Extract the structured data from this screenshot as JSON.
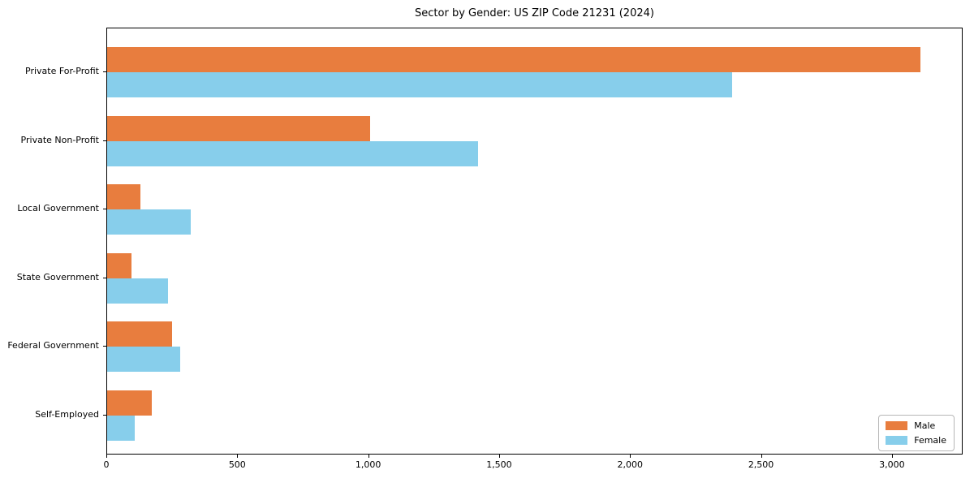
{
  "chart_data": {
    "type": "bar",
    "orientation": "horizontal",
    "title": "Sector by Gender: US ZIP Code 21231 (2024)",
    "categories": [
      "Private For-Profit",
      "Private Non-Profit",
      "Local Government",
      "State Government",
      "Federal Government",
      "Self-Employed"
    ],
    "series": [
      {
        "name": "Male",
        "color": "#e87d3e",
        "values": [
          3113,
          1005,
          128,
          94,
          249,
          170
        ]
      },
      {
        "name": "Female",
        "color": "#87ceeb",
        "values": [
          2390,
          1418,
          320,
          233,
          280,
          106
        ]
      }
    ],
    "xlabel": "",
    "ylabel": "",
    "xlim": [
      0,
      3270
    ],
    "x_ticks": [
      {
        "value": 0,
        "label": "0"
      },
      {
        "value": 500,
        "label": "500"
      },
      {
        "value": 1000,
        "label": "1,000"
      },
      {
        "value": 1500,
        "label": "1,500"
      },
      {
        "value": 2000,
        "label": "2,000"
      },
      {
        "value": 2500,
        "label": "2,500"
      },
      {
        "value": 3000,
        "label": "3,000"
      }
    ],
    "grid": false,
    "legend_position": "lower right",
    "colors": {
      "axis": "#000000",
      "background": "#ffffff"
    }
  }
}
